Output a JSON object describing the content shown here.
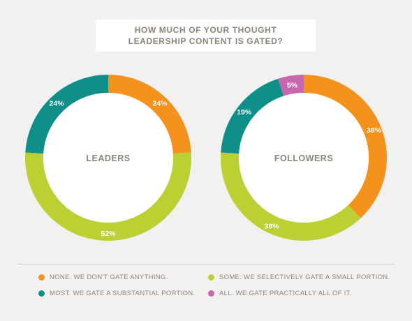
{
  "title": {
    "line1": "HOW MUCH OF YOUR THOUGHT",
    "line2": "LEADERSHIP CONTENT IS GATED?"
  },
  "colors": {
    "none": "#f5921e",
    "some": "#bbd033",
    "most": "#0f8f8a",
    "all": "#c767b0"
  },
  "chart_data": [
    {
      "type": "pie",
      "variant": "donut",
      "center_label": "LEADERS",
      "slices": [
        {
          "key": "none",
          "value": 24,
          "label": "24%"
        },
        {
          "key": "some",
          "value": 52,
          "label": "52%"
        },
        {
          "key": "most",
          "value": 24,
          "label": "24%"
        }
      ]
    },
    {
      "type": "pie",
      "variant": "donut",
      "center_label": "FOLLOWERS",
      "slices": [
        {
          "key": "none",
          "value": 38,
          "label": "38%"
        },
        {
          "key": "some",
          "value": 38,
          "label": "38%"
        },
        {
          "key": "most",
          "value": 19,
          "label": "19%"
        },
        {
          "key": "all",
          "value": 5,
          "label": "5%"
        }
      ]
    }
  ],
  "legend": [
    {
      "key": "none",
      "label": "NONE. WE DON'T GATE ANYTHING."
    },
    {
      "key": "some",
      "label": "SOME. WE SELECTIVELY GATE A SMALL PORTION."
    },
    {
      "key": "most",
      "label": "MOST. WE GATE A SUBSTANTIAL PORTION."
    },
    {
      "key": "all",
      "label": "ALL. WE GATE PRACTICALLY ALL OF IT."
    }
  ]
}
